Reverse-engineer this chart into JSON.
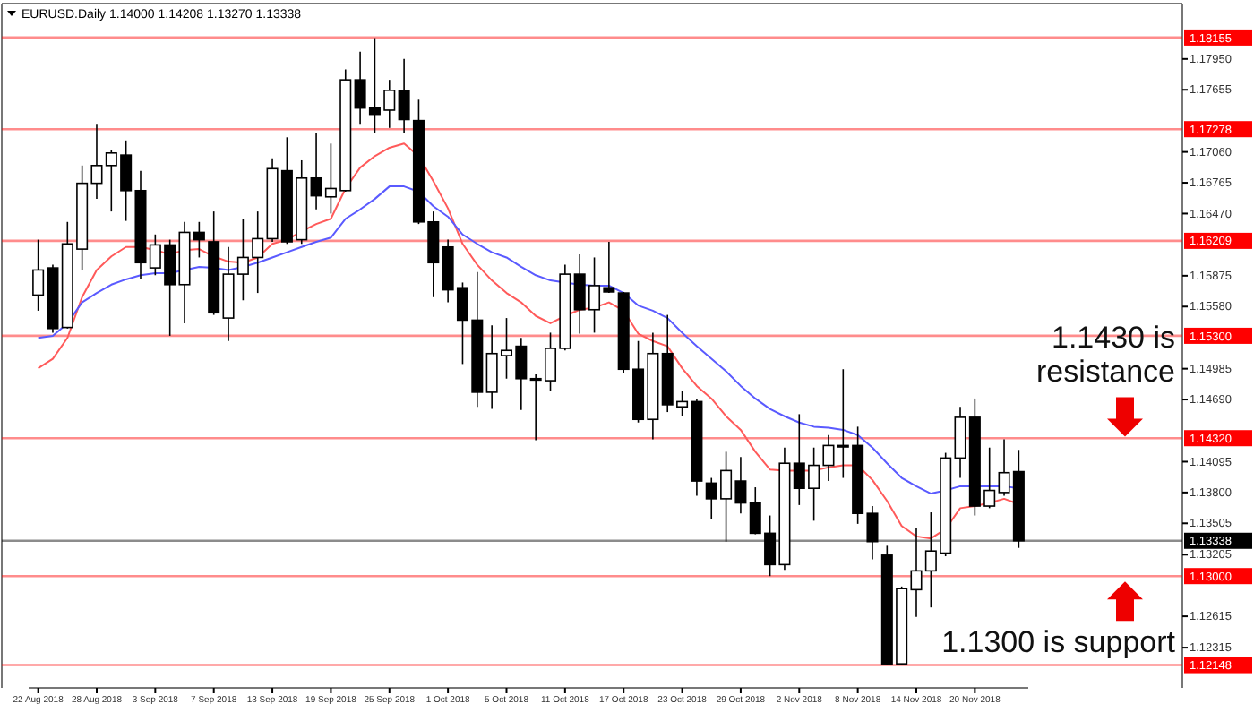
{
  "chart_data": {
    "type": "candlestick",
    "title": "EURUSD.Daily 1.14000 1.14208 1.13270 1.13338",
    "categories": [
      "22 Aug 2018",
      null,
      null,
      null,
      "28 Aug 2018",
      null,
      null,
      null,
      "3 Sep 2018",
      null,
      null,
      null,
      "7 Sep 2018",
      null,
      null,
      null,
      "13 Sep 2018",
      null,
      null,
      null,
      "19 Sep 2018",
      null,
      null,
      null,
      "25 Sep 2018",
      null,
      null,
      null,
      "1 Oct 2018",
      null,
      null,
      null,
      "5 Oct 2018",
      null,
      null,
      null,
      "11 Oct 2018",
      null,
      null,
      null,
      "17 Oct 2018",
      null,
      null,
      null,
      "23 Oct 2018",
      null,
      null,
      null,
      "29 Oct 2018",
      null,
      null,
      null,
      "2 Nov 2018",
      null,
      null,
      null,
      "8 Nov 2018",
      null,
      null,
      null,
      "14 Nov 2018",
      null,
      null,
      null,
      "20 Nov 2018",
      null,
      null,
      null
    ],
    "ohlc": [
      [
        1.1569,
        1.1622,
        1.1554,
        1.1593
      ],
      [
        1.1595,
        1.1598,
        1.1533,
        1.1537
      ],
      [
        1.1538,
        1.1639,
        1.1537,
        1.1618
      ],
      [
        1.1613,
        1.1693,
        1.1593,
        1.1676
      ],
      [
        1.1676,
        1.1732,
        1.1661,
        1.1693
      ],
      [
        1.1693,
        1.1708,
        1.1649,
        1.1705
      ],
      [
        1.1703,
        1.1717,
        1.164,
        1.1669
      ],
      [
        1.1669,
        1.1688,
        1.1584,
        1.16
      ],
      [
        1.1595,
        1.1627,
        1.1588,
        1.1617
      ],
      [
        1.1617,
        1.1622,
        1.153,
        1.1579
      ],
      [
        1.1579,
        1.1639,
        1.1542,
        1.1629
      ],
      [
        1.1629,
        1.1639,
        1.1605,
        1.1622
      ],
      [
        1.162,
        1.1649,
        1.155,
        1.1552
      ],
      [
        1.1547,
        1.1615,
        1.1525,
        1.1589
      ],
      [
        1.1589,
        1.1642,
        1.1564,
        1.1605
      ],
      [
        1.1605,
        1.1649,
        1.1571,
        1.1623
      ],
      [
        1.1623,
        1.17,
        1.162,
        1.169
      ],
      [
        1.1688,
        1.172,
        1.1618,
        1.162
      ],
      [
        1.1622,
        1.1698,
        1.1618,
        1.1681
      ],
      [
        1.1681,
        1.1724,
        1.1651,
        1.1664
      ],
      [
        1.1663,
        1.1714,
        1.1647,
        1.1671
      ],
      [
        1.1669,
        1.1785,
        1.1668,
        1.1775
      ],
      [
        1.1775,
        1.1802,
        1.1732,
        1.1748
      ],
      [
        1.1748,
        1.1815,
        1.1724,
        1.1742
      ],
      [
        1.1746,
        1.1775,
        1.1729,
        1.1765
      ],
      [
        1.1765,
        1.1795,
        1.1724,
        1.1737
      ],
      [
        1.1736,
        1.1756,
        1.1637,
        1.1639
      ],
      [
        1.1639,
        1.1649,
        1.1567,
        1.16
      ],
      [
        1.1615,
        1.1622,
        1.1562,
        1.1574
      ],
      [
        1.1576,
        1.1581,
        1.1503,
        1.1545
      ],
      [
        1.1545,
        1.1591,
        1.1462,
        1.1476
      ],
      [
        1.1476,
        1.154,
        1.146,
        1.1513
      ],
      [
        1.1511,
        1.1547,
        1.1489,
        1.1516
      ],
      [
        1.152,
        1.1528,
        1.1459,
        1.1489
      ],
      [
        1.1489,
        1.1493,
        1.143,
        1.1489
      ],
      [
        1.1487,
        1.1533,
        1.1477,
        1.1518
      ],
      [
        1.1518,
        1.1598,
        1.1516,
        1.1589
      ],
      [
        1.1589,
        1.1608,
        1.1532,
        1.1555
      ],
      [
        1.1555,
        1.1605,
        1.1533,
        1.1578
      ],
      [
        1.1576,
        1.162,
        1.1571,
        1.1572
      ],
      [
        1.1571,
        1.1572,
        1.1494,
        1.1498
      ],
      [
        1.1498,
        1.1525,
        1.1447,
        1.145
      ],
      [
        1.145,
        1.1533,
        1.1431,
        1.1513
      ],
      [
        1.1513,
        1.155,
        1.1457,
        1.1464
      ],
      [
        1.1462,
        1.1477,
        1.1453,
        1.1467
      ],
      [
        1.1467,
        1.147,
        1.1377,
        1.1391
      ],
      [
        1.1389,
        1.1394,
        1.1355,
        1.1374
      ],
      [
        1.1374,
        1.1419,
        1.1333,
        1.1401
      ],
      [
        1.1391,
        1.1414,
        1.136,
        1.137
      ],
      [
        1.137,
        1.1385,
        1.134,
        1.1341
      ],
      [
        1.1341,
        1.1358,
        1.13,
        1.1311
      ],
      [
        1.1311,
        1.1423,
        1.1306,
        1.1408
      ],
      [
        1.1408,
        1.1455,
        1.1368,
        1.1384
      ],
      [
        1.1384,
        1.1423,
        1.1353,
        1.1406
      ],
      [
        1.1406,
        1.1435,
        1.1391,
        1.1425
      ],
      [
        1.1425,
        1.1498,
        1.1394,
        1.1425
      ],
      [
        1.1425,
        1.1443,
        1.135,
        1.136
      ],
      [
        1.136,
        1.1367,
        1.1316,
        1.1333
      ],
      [
        1.132,
        1.1329,
        1.1215,
        1.1216
      ],
      [
        1.1216,
        1.129,
        1.1215,
        1.1288
      ],
      [
        1.1287,
        1.1346,
        1.1261,
        1.1305
      ],
      [
        1.1305,
        1.1361,
        1.127,
        1.1324
      ],
      [
        1.1322,
        1.1418,
        1.1319,
        1.1413
      ],
      [
        1.1413,
        1.1462,
        1.1394,
        1.1452
      ],
      [
        1.1452,
        1.147,
        1.1358,
        1.1367
      ],
      [
        1.1367,
        1.1423,
        1.1365,
        1.1382
      ],
      [
        1.138,
        1.1431,
        1.1377,
        1.1399
      ],
      [
        1.14,
        1.14208,
        1.1327,
        1.13338
      ]
    ],
    "series": [
      {
        "type": "line",
        "color": "#ff5a5a",
        "values": [
          1.1499,
          1.1508,
          1.1528,
          1.1567,
          1.1593,
          1.1606,
          1.1615,
          1.1615,
          1.1612,
          1.1608,
          1.1612,
          1.1613,
          1.1606,
          1.1601,
          1.16,
          1.1605,
          1.1618,
          1.1622,
          1.163,
          1.1637,
          1.1642,
          1.1671,
          1.1691,
          1.1702,
          1.171,
          1.1714,
          1.1702,
          1.1678,
          1.1652,
          1.1618,
          1.1598,
          1.1583,
          1.1571,
          1.1562,
          1.1549,
          1.1542,
          1.1549,
          1.1555,
          1.1557,
          1.1562,
          1.1554,
          1.1532,
          1.1525,
          1.152,
          1.1499,
          1.1482,
          1.147,
          1.1453,
          1.144,
          1.1419,
          1.1402,
          1.1401,
          1.1401,
          1.1401,
          1.1404,
          1.1406,
          1.1406,
          1.1392,
          1.1372,
          1.1348,
          1.1338,
          1.1336,
          1.1345,
          1.1365,
          1.1367,
          1.137,
          1.1374,
          1.1369
        ]
      },
      {
        "type": "line",
        "color": "#5a5aff",
        "values": [
          1.1528,
          1.153,
          1.1542,
          1.1562,
          1.1571,
          1.1579,
          1.1584,
          1.1588,
          1.159,
          1.159,
          1.1593,
          1.1596,
          1.1595,
          1.1593,
          1.1596,
          1.16,
          1.1605,
          1.161,
          1.1615,
          1.162,
          1.1624,
          1.1642,
          1.1651,
          1.1661,
          1.1673,
          1.1673,
          1.1668,
          1.1654,
          1.1644,
          1.1627,
          1.1618,
          1.161,
          1.1605,
          1.1596,
          1.1588,
          1.1583,
          1.1581,
          1.1579,
          1.1578,
          1.1578,
          1.1571,
          1.1559,
          1.1554,
          1.1547,
          1.1533,
          1.152,
          1.1508,
          1.1496,
          1.1482,
          1.147,
          1.146,
          1.1453,
          1.1447,
          1.1443,
          1.1442,
          1.144,
          1.1435,
          1.1423,
          1.1408,
          1.1394,
          1.1386,
          1.1379,
          1.1382,
          1.1386,
          1.1386,
          1.1386,
          1.1386,
          1.1384
        ]
      }
    ],
    "ylim": [
      1.1193,
      1.1848
    ],
    "yticks": [
      {
        "value": 1.1795,
        "label": "1.17950"
      },
      {
        "value": 1.17655,
        "label": "1.17655"
      },
      {
        "value": 1.1706,
        "label": "1.17060"
      },
      {
        "value": 1.16765,
        "label": "1.16765"
      },
      {
        "value": 1.1647,
        "label": "1.16470"
      },
      {
        "value": 1.15875,
        "label": "1.15875"
      },
      {
        "value": 1.1558,
        "label": "1.15580"
      },
      {
        "value": 1.14985,
        "label": "1.14985"
      },
      {
        "value": 1.1469,
        "label": "1.14690"
      },
      {
        "value": 1.14095,
        "label": "1.14095"
      },
      {
        "value": 1.138,
        "label": "1.13800"
      },
      {
        "value": 1.13505,
        "label": "1.13505"
      },
      {
        "value": 1.13205,
        "label": "1.13205"
      },
      {
        "value": 1.12615,
        "label": "1.12615"
      },
      {
        "value": 1.12315,
        "label": "1.12315"
      }
    ],
    "ref_lines": [
      {
        "axis": "y",
        "value": 1.18155,
        "label": "1.18155",
        "color": "#ff0000"
      },
      {
        "axis": "y",
        "value": 1.17278,
        "label": "1.17278",
        "color": "#ff0000"
      },
      {
        "axis": "y",
        "value": 1.16209,
        "label": "1.16209",
        "color": "#ff0000"
      },
      {
        "axis": "y",
        "value": 1.153,
        "label": "1.15300",
        "color": "#ff0000"
      },
      {
        "axis": "y",
        "value": 1.1432,
        "label": "1.14320",
        "color": "#ff0000"
      },
      {
        "axis": "y",
        "value": 1.13338,
        "label": "1.13338",
        "color": "#000000"
      },
      {
        "axis": "y",
        "value": 1.13,
        "label": "1.13000",
        "color": "#ff0000"
      },
      {
        "axis": "y",
        "value": 1.12148,
        "label": "1.12148",
        "color": "#ff0000"
      }
    ],
    "annotations": [
      {
        "text": "1.1430 is resistance",
        "y": 1.143
      },
      {
        "text": "1.1300 is support",
        "y": 1.13
      }
    ],
    "grid": false
  }
}
